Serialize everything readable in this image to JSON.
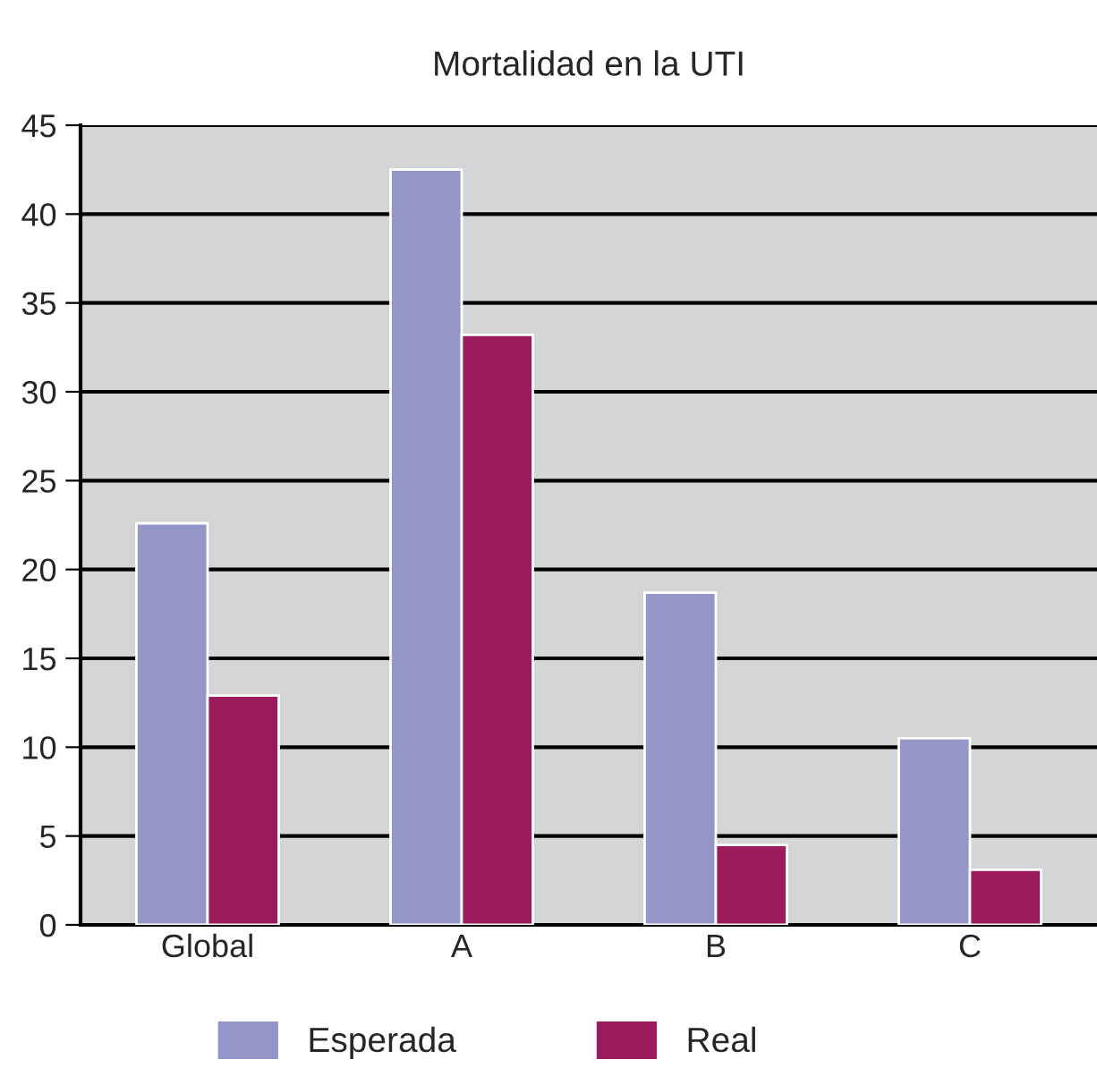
{
  "chart_data": {
    "type": "bar",
    "title": "Mortalidad en la UTI",
    "categories": [
      "Global",
      "A",
      "B",
      "C"
    ],
    "series": [
      {
        "name": "Esperada",
        "color": "#9596c8",
        "values": [
          22.6,
          42.5,
          18.7,
          10.5
        ]
      },
      {
        "name": "Real",
        "color": "#9b1c5c",
        "values": [
          12.9,
          33.2,
          4.5,
          3.1
        ]
      }
    ],
    "ylim": [
      0,
      45
    ],
    "yticks": [
      0,
      5,
      10,
      15,
      20,
      25,
      30,
      35,
      40,
      45
    ],
    "grid": "y",
    "legend": "bottom"
  }
}
